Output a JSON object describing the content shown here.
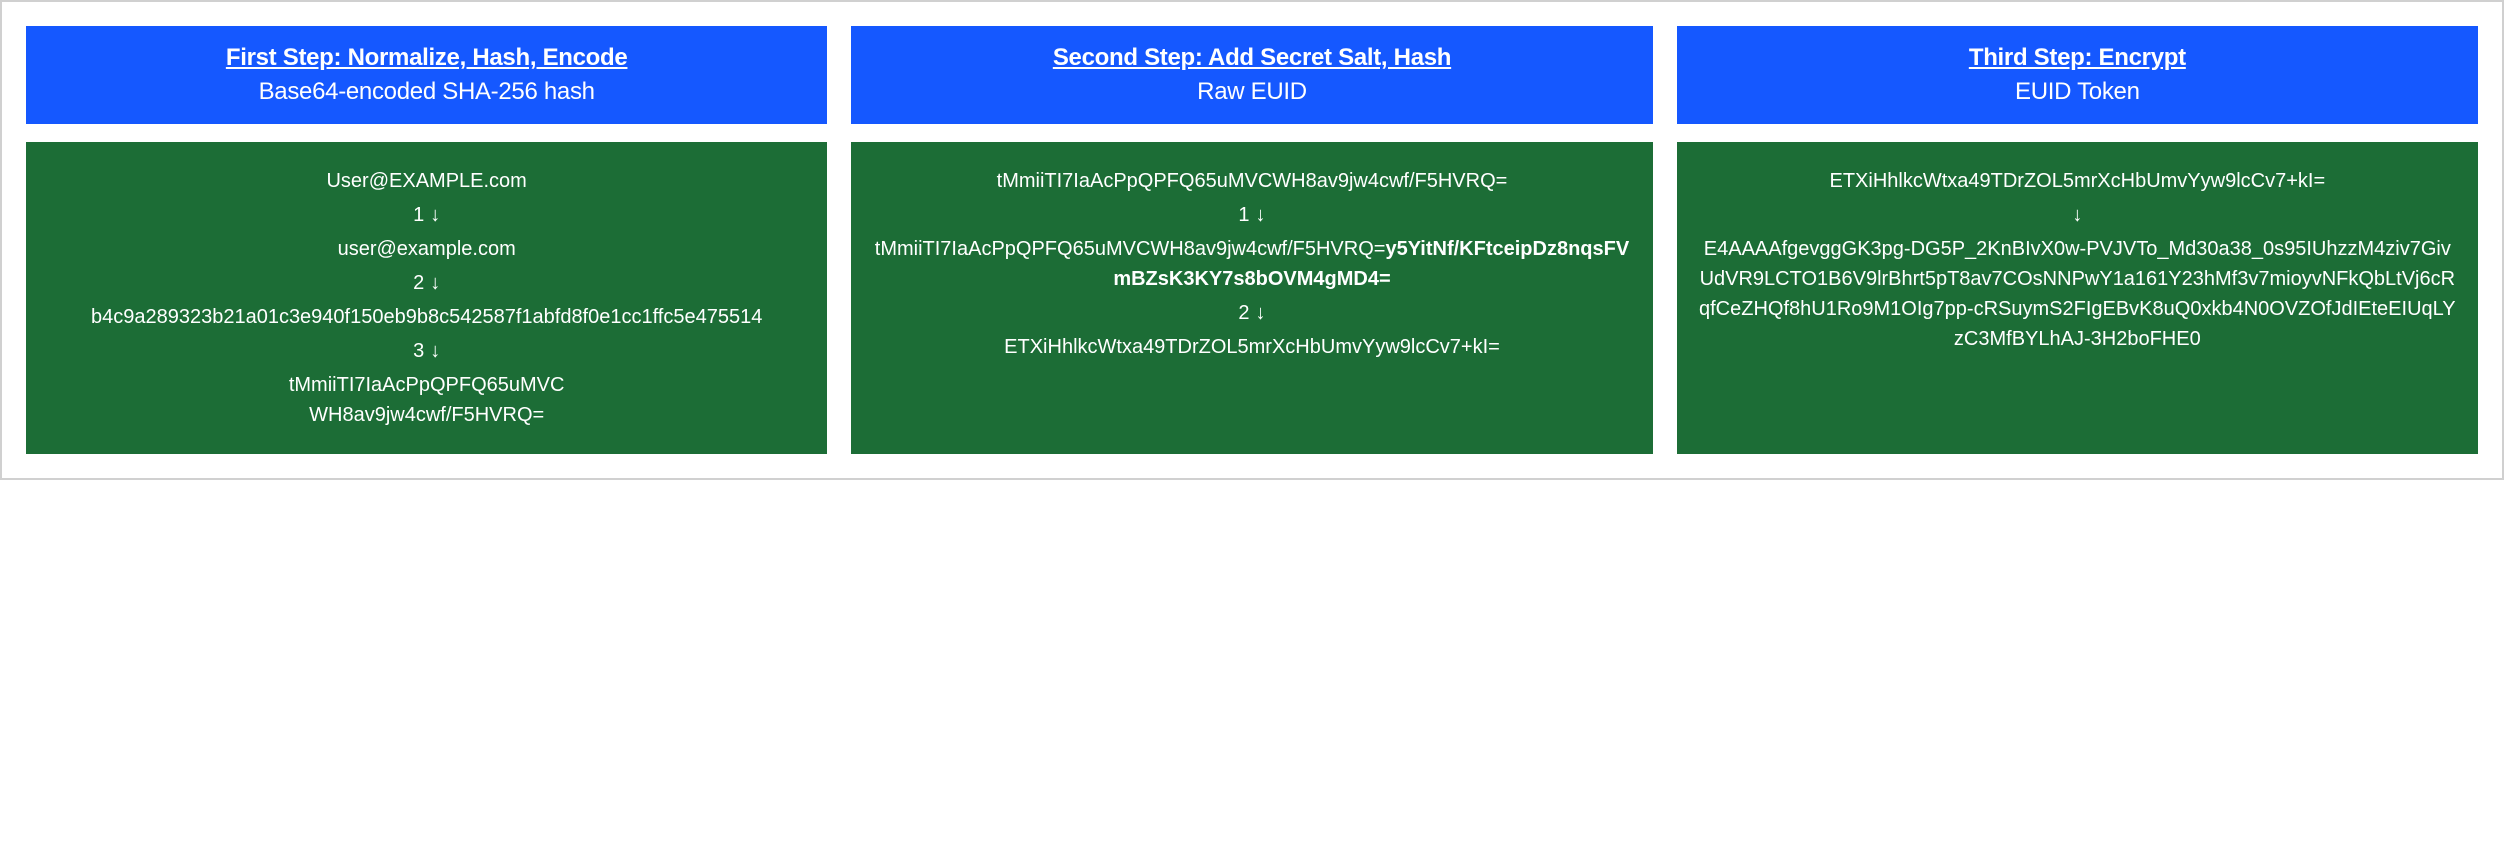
{
  "layout": {
    "container_border_color": "#d0d0d0",
    "header_bg": "#1558ff",
    "header_text_color": "#ffffff",
    "content_bg": "#1c6d36",
    "content_text_color": "#ffffff",
    "font_family": "-apple-system, BlinkMacSystemFont, Segoe UI, Helvetica, Arial, sans-serif",
    "header_title_fontsize": 24,
    "header_subtitle_fontsize": 24,
    "content_fontsize": 20
  },
  "steps": [
    {
      "title": "First Step: Normalize, Hash, Encode",
      "subtitle": "Base64-encoded SHA-256 hash",
      "lines": [
        {
          "type": "text",
          "value": "User@EXAMPLE.com"
        },
        {
          "type": "arrow",
          "num": "1"
        },
        {
          "type": "text",
          "value": "user@example.com"
        },
        {
          "type": "arrow",
          "num": "2"
        },
        {
          "type": "text",
          "value": "b4c9a289323b21a01c3e940f150eb9b8c542587f1abfd8f0e1cc1ffc5e475514"
        },
        {
          "type": "arrow",
          "num": "3"
        },
        {
          "type": "text",
          "value": "tMmiiTI7IaAcPpQPFQ65uMVC"
        },
        {
          "type": "text",
          "value": "WH8av9jw4cwf/F5HVRQ="
        }
      ]
    },
    {
      "title": "Second Step: Add Secret Salt, Hash",
      "subtitle": "Raw EUID",
      "lines": [
        {
          "type": "text",
          "value": "tMmiiTI7IaAcPpQPFQ65uMVCWH8av9jw4cwf/F5HVRQ="
        },
        {
          "type": "arrow",
          "num": "1"
        },
        {
          "type": "mixed",
          "plain": "tMmiiTI7IaAcPpQPFQ65uMVCWH8av9jw4cwf/F5HVRQ=",
          "bold": "y5YitNf/KFtceipDz8nqsFVmBZsK3KY7s8bOVM4gMD4="
        },
        {
          "type": "arrow",
          "num": "2"
        },
        {
          "type": "text",
          "value": "ETXiHhlkcWtxa49TDrZOL5mrXcHbUmvYyw9lcCv7+kI="
        }
      ]
    },
    {
      "title": "Third Step: Encrypt",
      "subtitle": "EUID Token",
      "lines": [
        {
          "type": "text",
          "value": "ETXiHhlkcWtxa49TDrZOL5mrXcHbUmvYyw9lcCv7+kI="
        },
        {
          "type": "arrow",
          "num": ""
        },
        {
          "type": "text",
          "value": "E4AAAAfgevggGK3pg-DG5P_2KnBIvX0w-PVJVTo_Md30a38_0s95IUhzzM4ziv7GivUdVR9LCTO1B6V9lrBhrt5pT8av7COsNNPwY1a161Y23hMf3v7mioyvNFkQbLtVj6cRqfCeZHQf8hU1Ro9M1OIg7pp-cRSuymS2FIgEBvK8uQ0xkb4N0OVZOfJdIEteEIUqLYzC3MfBYLhAJ-3H2boFHE0"
        }
      ]
    }
  ],
  "arrow_glyph": "↓"
}
